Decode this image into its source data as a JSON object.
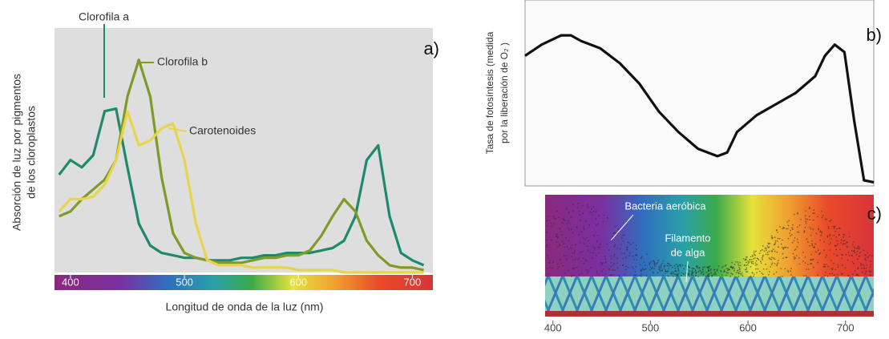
{
  "chart_data": [
    {
      "type": "line",
      "panel_label": "a)",
      "ylabel": [
        "Absorción de luz por pigmentos",
        "de los cloroplastos"
      ],
      "xlabel": "Longitud de onda de la luz (nm)",
      "x": [
        390,
        400,
        410,
        420,
        430,
        440,
        450,
        460,
        470,
        480,
        490,
        500,
        510,
        520,
        530,
        540,
        550,
        560,
        570,
        580,
        590,
        600,
        610,
        620,
        630,
        640,
        650,
        660,
        670,
        680,
        690,
        700,
        710
      ],
      "xlim": [
        386,
        718
      ],
      "xticks": [
        400,
        500,
        600,
        700
      ],
      "ylim": [
        0,
        100
      ],
      "series": [
        {
          "name": "Clorofila a",
          "color": "#1e8a6c",
          "values": [
            40,
            46,
            43,
            48,
            66,
            67,
            43,
            20,
            11,
            8,
            7,
            6,
            6,
            5,
            5,
            5,
            6,
            6,
            7,
            7,
            8,
            8,
            8,
            9,
            10,
            13,
            23,
            46,
            52,
            23,
            8,
            5,
            3
          ]
        },
        {
          "name": "Clorofila b",
          "color": "#7f9a26",
          "values": [
            23,
            25,
            30,
            34,
            38,
            46,
            72,
            87,
            72,
            39,
            16,
            8,
            6,
            5,
            4,
            4,
            4,
            5,
            6,
            6,
            7,
            7,
            9,
            15,
            23,
            30,
            25,
            13,
            7,
            3,
            2,
            2,
            1
          ]
        },
        {
          "name": "Carotenoides",
          "color": "#e6d54c",
          "values": [
            25,
            30,
            30,
            31,
            36,
            46,
            66,
            52,
            54,
            59,
            61,
            46,
            20,
            5,
            3,
            3,
            3,
            2,
            2,
            2,
            2,
            1,
            1,
            1,
            1,
            0,
            0,
            0,
            0,
            0,
            0,
            0,
            0
          ]
        }
      ]
    },
    {
      "type": "line",
      "panel_label": "b)",
      "ylabel": [
        "Tasa de fotosíntesis (medida",
        "por la liberación de O₂ )"
      ],
      "x": [
        373,
        390,
        410,
        420,
        430,
        450,
        470,
        490,
        510,
        530,
        550,
        570,
        580,
        590,
        610,
        630,
        650,
        670,
        680,
        690,
        700,
        710,
        720,
        730
      ],
      "xlim": [
        373,
        730
      ],
      "ylim": [
        0,
        100
      ],
      "series": [
        {
          "name": "Tasa de fotosíntesis",
          "color": "#111111",
          "values": [
            70,
            76,
            81,
            81,
            78,
            74,
            66,
            55,
            40,
            29,
            20,
            16,
            18,
            29,
            38,
            44,
            50,
            59,
            70,
            76,
            72,
            35,
            3,
            2
          ]
        }
      ]
    },
    {
      "type": "diagram",
      "panel_label": "c)",
      "annotations": [
        "Bacteria aeróbica",
        "Filamento",
        "de alga"
      ],
      "xlim": [
        392,
        729
      ],
      "xticks": [
        400,
        500,
        600,
        700
      ]
    }
  ]
}
